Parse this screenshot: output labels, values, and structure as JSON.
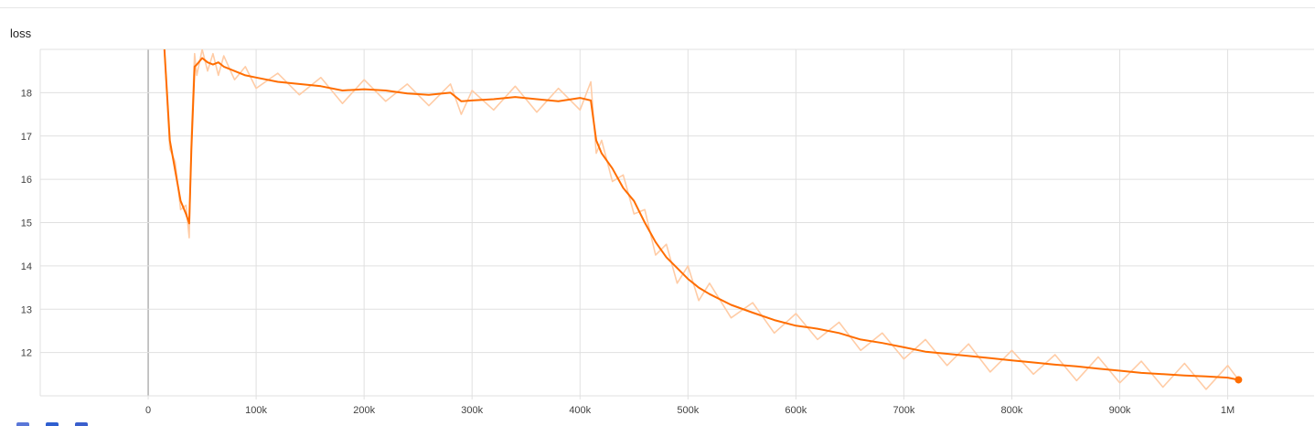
{
  "title": "loss",
  "chart_data": {
    "type": "line",
    "title": "loss",
    "xlabel": "",
    "ylabel": "",
    "xlim": [
      -100000,
      1080000
    ],
    "ylim": [
      11.0,
      19.0
    ],
    "x_ticks": [
      0,
      100000,
      200000,
      300000,
      400000,
      500000,
      600000,
      700000,
      800000,
      900000,
      1000000
    ],
    "x_tick_labels": [
      "0",
      "100k",
      "200k",
      "300k",
      "400k",
      "500k",
      "600k",
      "700k",
      "800k",
      "900k",
      "1M"
    ],
    "y_ticks": [
      12,
      13,
      14,
      15,
      16,
      17,
      18
    ],
    "y_tick_labels": [
      "12",
      "13",
      "14",
      "15",
      "16",
      "17",
      "18"
    ],
    "grid": true,
    "legend": "none",
    "series": [
      {
        "role": "smoothed",
        "color": "#ff6d00",
        "x": [
          15000,
          20000,
          25000,
          30000,
          35000,
          38000,
          40000,
          43000,
          45000,
          50000,
          55000,
          60000,
          65000,
          70000,
          80000,
          90000,
          100000,
          120000,
          140000,
          160000,
          180000,
          200000,
          220000,
          240000,
          260000,
          280000,
          290000,
          300000,
          320000,
          340000,
          360000,
          380000,
          400000,
          410000,
          415000,
          420000,
          430000,
          440000,
          450000,
          460000,
          470000,
          480000,
          490000,
          500000,
          510000,
          520000,
          540000,
          560000,
          580000,
          600000,
          620000,
          640000,
          660000,
          680000,
          700000,
          720000,
          740000,
          760000,
          780000,
          800000,
          820000,
          840000,
          860000,
          880000,
          900000,
          920000,
          940000,
          960000,
          980000,
          1000000,
          1010000
        ],
        "y": [
          19.0,
          16.9,
          16.2,
          15.5,
          15.2,
          14.98,
          16.7,
          18.6,
          18.65,
          18.8,
          18.7,
          18.65,
          18.7,
          18.6,
          18.5,
          18.4,
          18.35,
          18.25,
          18.2,
          18.15,
          18.05,
          18.08,
          18.05,
          17.98,
          17.95,
          18.0,
          17.8,
          17.82,
          17.85,
          17.9,
          17.85,
          17.8,
          17.88,
          17.82,
          16.9,
          16.6,
          16.25,
          15.8,
          15.5,
          15.0,
          14.55,
          14.2,
          13.95,
          13.7,
          13.5,
          13.35,
          13.1,
          12.92,
          12.75,
          12.62,
          12.55,
          12.45,
          12.3,
          12.22,
          12.12,
          12.02,
          11.97,
          11.92,
          11.87,
          11.82,
          11.77,
          11.72,
          11.68,
          11.63,
          11.58,
          11.53,
          11.5,
          11.47,
          11.45,
          11.42,
          11.37
        ]
      },
      {
        "role": "raw",
        "color": "#ffcca6",
        "x": [
          15000,
          20000,
          25000,
          30000,
          35000,
          38000,
          40000,
          43000,
          45000,
          50000,
          55000,
          60000,
          65000,
          70000,
          80000,
          90000,
          100000,
          120000,
          140000,
          160000,
          180000,
          200000,
          220000,
          240000,
          260000,
          280000,
          290000,
          300000,
          320000,
          340000,
          360000,
          380000,
          400000,
          410000,
          415000,
          420000,
          430000,
          440000,
          450000,
          460000,
          470000,
          480000,
          490000,
          500000,
          510000,
          520000,
          540000,
          560000,
          580000,
          600000,
          620000,
          640000,
          660000,
          680000,
          700000,
          720000,
          740000,
          760000,
          780000,
          800000,
          820000,
          840000,
          860000,
          880000,
          900000,
          920000,
          940000,
          960000,
          980000,
          1000000,
          1010000
        ],
        "y": [
          19.0,
          16.7,
          16.4,
          15.3,
          15.4,
          14.65,
          17.0,
          18.9,
          18.4,
          19.0,
          18.5,
          18.9,
          18.4,
          18.85,
          18.3,
          18.6,
          18.1,
          18.45,
          17.95,
          18.35,
          17.75,
          18.3,
          17.8,
          18.2,
          17.7,
          18.2,
          17.5,
          18.05,
          17.6,
          18.15,
          17.55,
          18.1,
          17.6,
          18.25,
          16.6,
          16.9,
          15.95,
          16.1,
          15.2,
          15.3,
          14.25,
          14.5,
          13.6,
          14.0,
          13.2,
          13.6,
          12.8,
          13.15,
          12.45,
          12.9,
          12.3,
          12.7,
          12.05,
          12.45,
          11.85,
          12.3,
          11.7,
          12.2,
          11.55,
          12.05,
          11.5,
          11.95,
          11.35,
          11.9,
          11.3,
          11.8,
          11.2,
          11.75,
          11.15,
          11.7,
          11.37
        ]
      }
    ]
  },
  "colors": {
    "line": "#ff6d00",
    "raw_line": "#ffcca6",
    "grid": "#e0e0e0",
    "axis": "#9e9e9e"
  },
  "toolbar": {
    "buttons": [
      {
        "icon": "fit-domain-icon",
        "color": "#5a77d8"
      },
      {
        "icon": "log-scale-icon",
        "color": "#2f5fd0"
      },
      {
        "icon": "download-icon",
        "color": "#3a5fcd"
      }
    ]
  }
}
